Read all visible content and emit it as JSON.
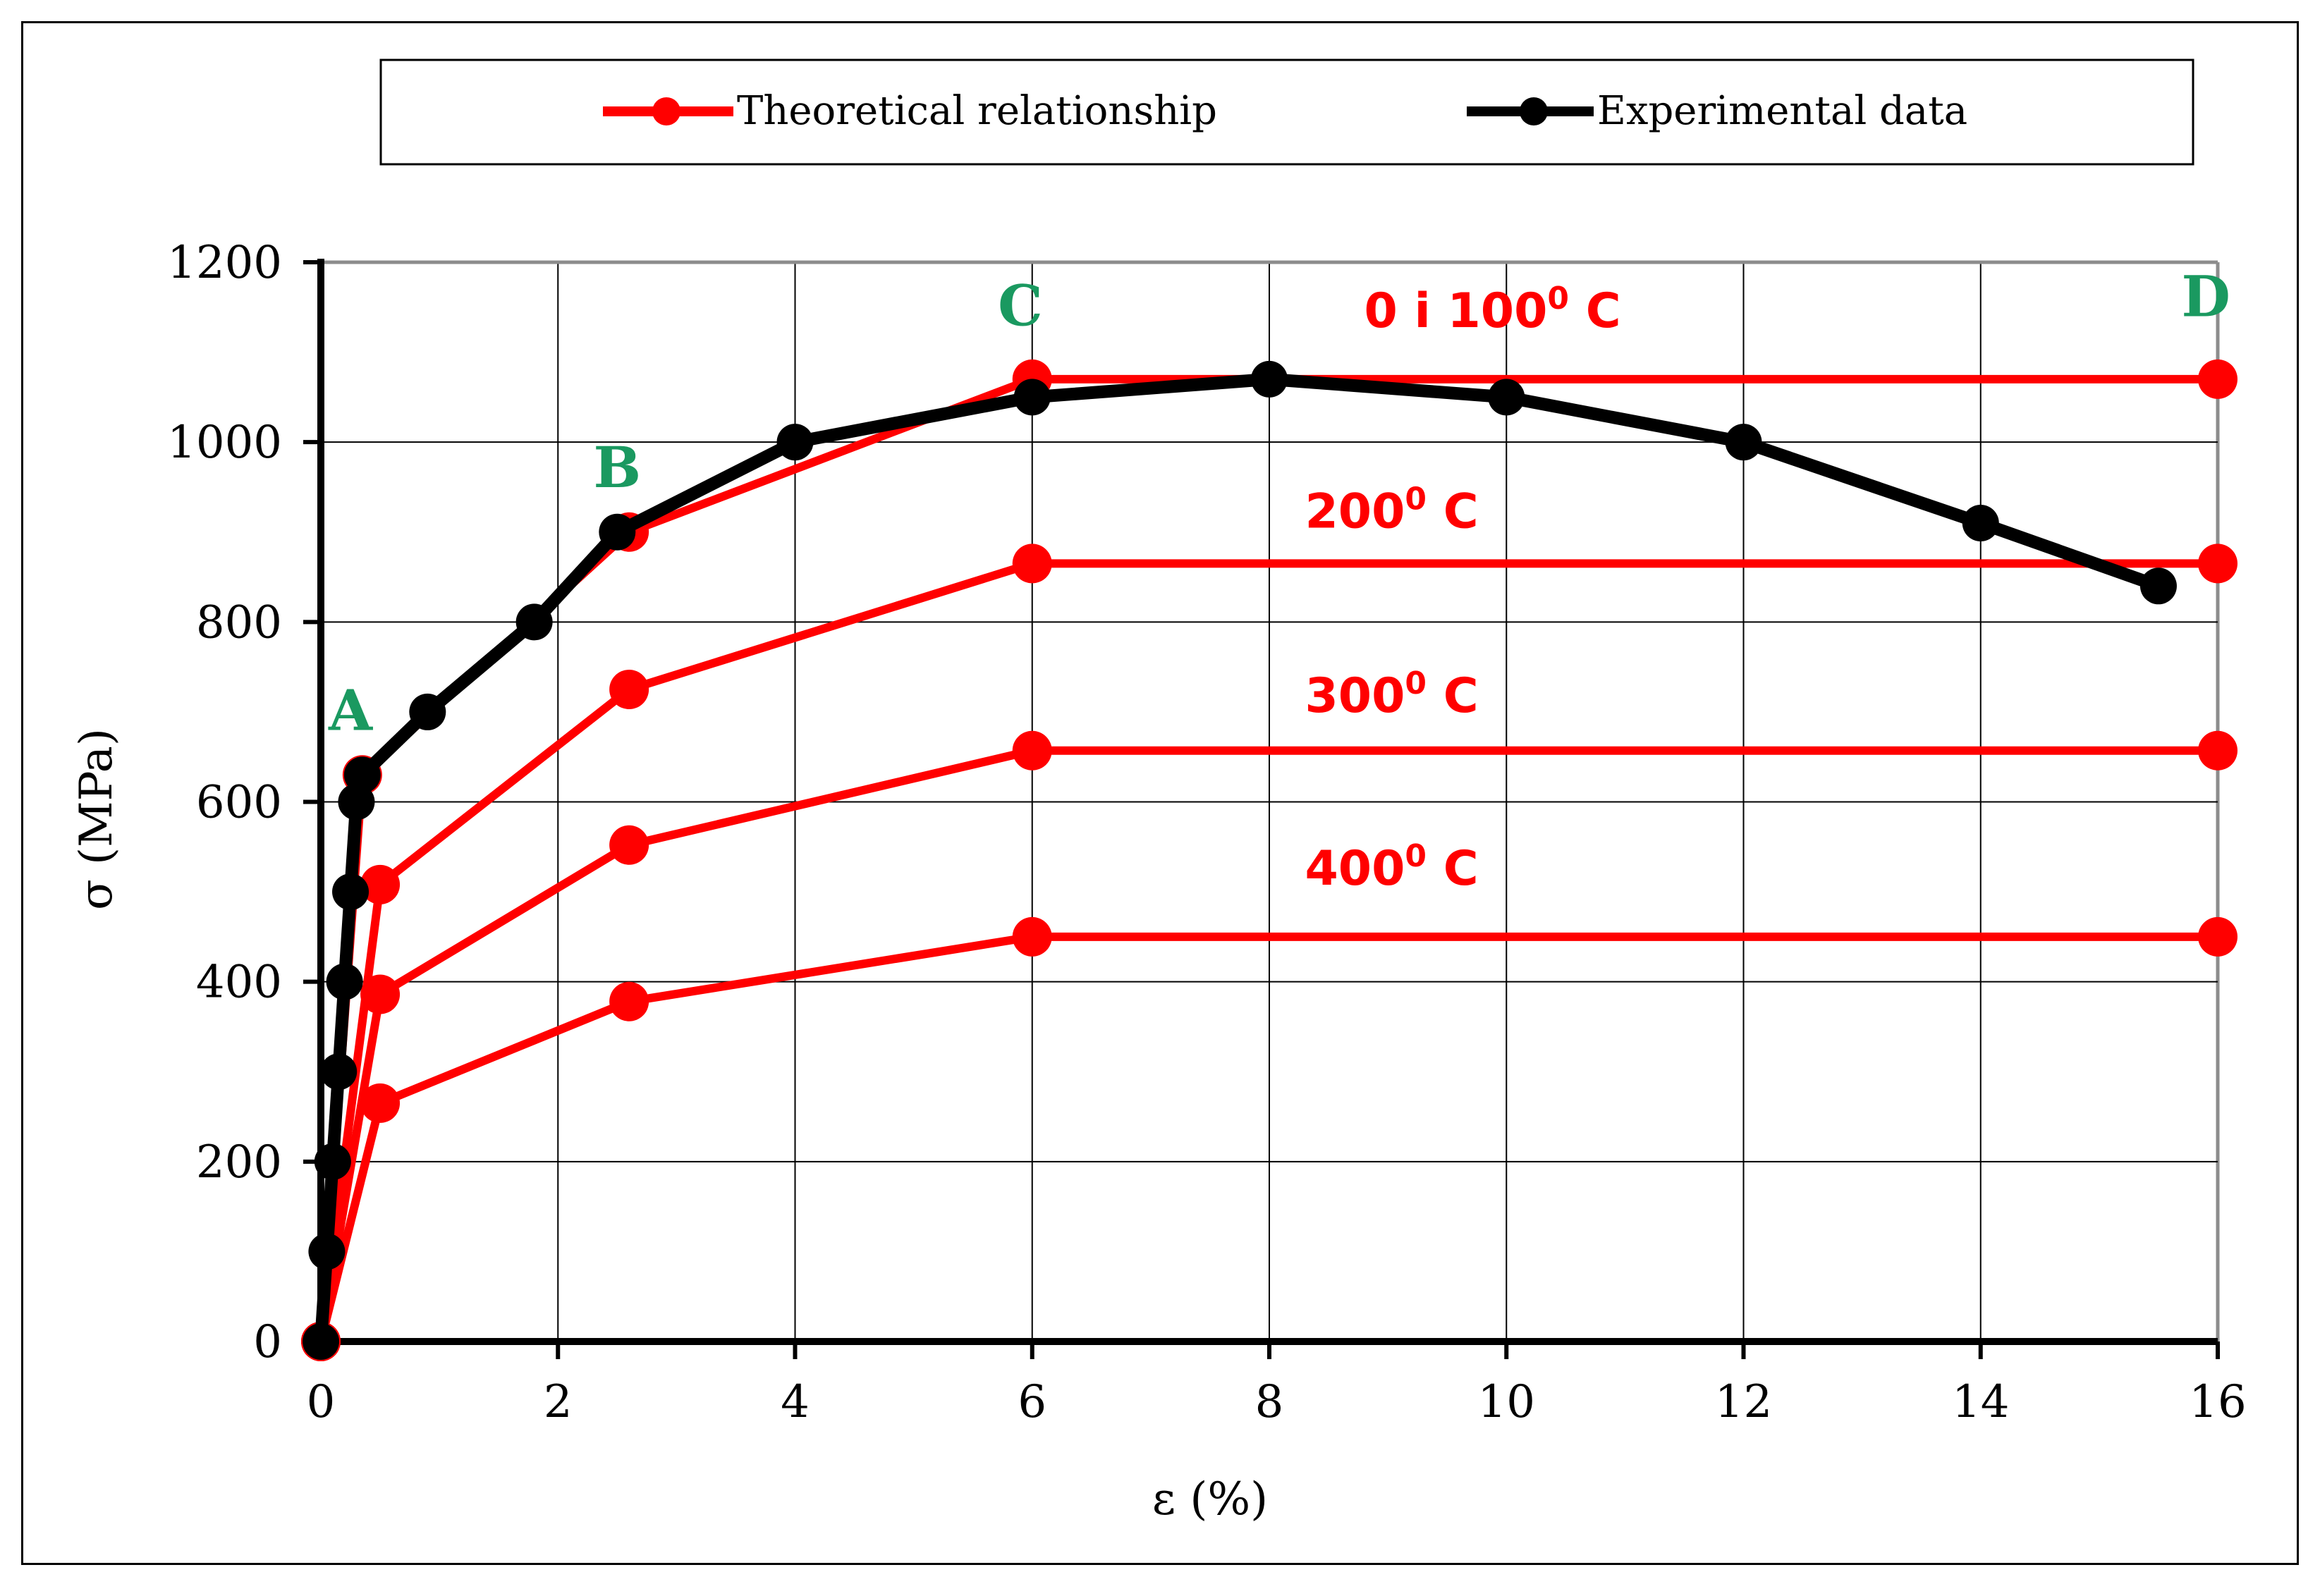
{
  "chart_data": {
    "type": "line",
    "title": "",
    "xlabel": "ε (%)",
    "ylabel": "σ (MPa)",
    "xlim": [
      0,
      16
    ],
    "ylim": [
      0,
      1200
    ],
    "xticks": [
      0,
      2,
      4,
      6,
      8,
      10,
      12,
      14,
      16
    ],
    "yticks": [
      0,
      200,
      400,
      600,
      800,
      1000,
      1200
    ],
    "grid": true,
    "legend_position": "top",
    "legend": [
      {
        "name": "Theoretical relationship",
        "color": "#ff0000"
      },
      {
        "name": "Experimental data",
        "color": "#000000"
      }
    ],
    "series": [
      {
        "name": "Theoretical relationship",
        "group": "0 i 100⁰ C",
        "color": "#ff0000",
        "x": [
          0,
          0.35,
          2.6,
          6,
          16
        ],
        "y": [
          0,
          630,
          900,
          1070,
          1070
        ]
      },
      {
        "name": "Theoretical relationship",
        "group": "200⁰ C",
        "color": "#ff0000",
        "x": [
          0,
          0.5,
          2.6,
          6,
          16
        ],
        "y": [
          0,
          508,
          725,
          865,
          865
        ]
      },
      {
        "name": "Theoretical relationship",
        "group": "300⁰ C",
        "color": "#ff0000",
        "x": [
          0,
          0.5,
          2.6,
          6,
          16
        ],
        "y": [
          0,
          386,
          552,
          657,
          657
        ]
      },
      {
        "name": "Theoretical relationship",
        "group": "400⁰ C",
        "color": "#ff0000",
        "x": [
          0,
          0.5,
          2.6,
          6,
          16
        ],
        "y": [
          0,
          265,
          378,
          450,
          450
        ]
      },
      {
        "name": "Experimental data",
        "color": "#000000",
        "x": [
          0,
          0.05,
          0.1,
          0.15,
          0.2,
          0.25,
          0.3,
          0.35,
          0.9,
          1.8,
          2.5,
          4,
          6,
          8,
          10,
          12,
          14,
          15.5
        ],
        "y": [
          0,
          100,
          200,
          300,
          400,
          500,
          600,
          630,
          700,
          800,
          900,
          1000,
          1050,
          1070,
          1050,
          1000,
          910,
          840
        ]
      }
    ],
    "annotations": {
      "temperature_labels": [
        {
          "main": "0 i 100",
          "sup": "0",
          "tail": " C",
          "x": 8.8,
          "y": 1128
        },
        {
          "main": "200",
          "sup": "0",
          "tail": " C",
          "x": 8.3,
          "y": 905
        },
        {
          "main": "300",
          "sup": "0",
          "tail": " C",
          "x": 8.3,
          "y": 700
        },
        {
          "main": "400",
          "sup": "0",
          "tail": " C",
          "x": 8.3,
          "y": 508
        }
      ],
      "point_labels": [
        {
          "text": "A",
          "x": 0.25,
          "y": 680
        },
        {
          "text": "B",
          "x": 2.5,
          "y": 950
        },
        {
          "text": "C",
          "x": 5.9,
          "y": 1130
        },
        {
          "text": "D",
          "x": 15.9,
          "y": 1140
        }
      ],
      "point_label_color": "#1a9960"
    }
  }
}
